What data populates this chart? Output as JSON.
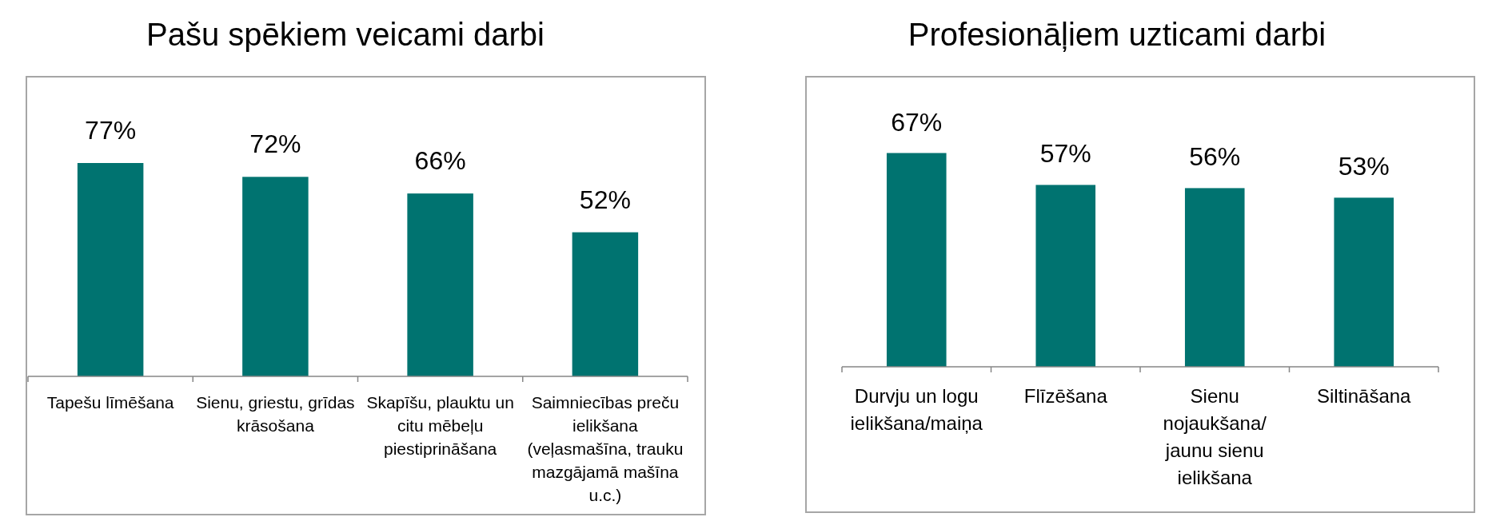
{
  "chart_data": [
    {
      "type": "bar",
      "title": "Pašu spēkiem veicami darbi",
      "categories": [
        "Tapešu līmēšana",
        "Sienu, griestu, grīdas krāsošana",
        "Skapīšu, plauktu un citu mēbeļu piestiprināšana",
        "Saimniecības preču ielikšana (veļasmašīna, trauku mazgājamā mašīna u.c.)"
      ],
      "values": [
        77,
        72,
        66,
        52
      ],
      "value_labels": [
        "77%",
        "72%",
        "66%",
        "52%"
      ],
      "color": "#007370",
      "tick_labels": "x"
    },
    {
      "type": "bar",
      "title": "Profesionāļiem uzticami darbi",
      "categories": [
        "Durvju un logu ielikšana/maiņa",
        "Flīzēšana",
        "Sienu nojaukšana/ jaunu sienu ielikšana",
        "Siltināšana"
      ],
      "values": [
        67,
        57,
        56,
        53
      ],
      "value_labels": [
        "67%",
        "57%",
        "56%",
        "53%"
      ],
      "color": "#007370",
      "tick_labels": "x"
    }
  ]
}
